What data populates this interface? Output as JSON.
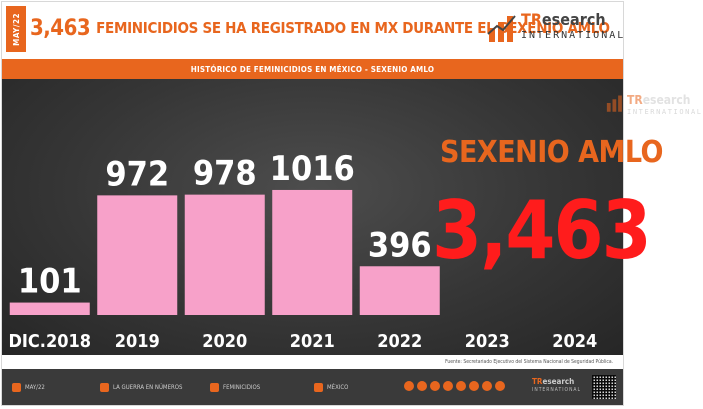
{
  "header": {
    "date_tag": "MAY/22",
    "headline_number": "3,463",
    "headline_text": "FEMINICIDIOS SE HA REGISTRADO EN MX DURANTE EL SEXENIO AMLO",
    "logo_brand_a": "TR",
    "logo_brand_b": "esearch",
    "logo_sub": "INTERNATIONAL"
  },
  "subtitle_bar": "HISTÓRICO DE FEMINICIDIOS EN MÉXICO -  SEXENIO AMLO",
  "chart_data": {
    "type": "bar",
    "categories": [
      "DIC.2018",
      "2019",
      "2020",
      "2021",
      "2022",
      "2023",
      "2024"
    ],
    "values": [
      101,
      972,
      978,
      1016,
      396,
      null,
      null
    ],
    "data_labels": [
      "101",
      "972",
      "978",
      "1016",
      "396",
      "",
      ""
    ],
    "title": "HISTÓRICO DE FEMINICIDIOS EN MÉXICO -  SEXENIO AMLO",
    "xlabel": "",
    "ylabel": "",
    "ylim": [
      0,
      1300
    ],
    "grid": false,
    "legend": "none",
    "bar_color": "#f7a1c9",
    "annotation_label": "SEXENIO AMLO",
    "annotation_value": "3,463"
  },
  "colors": {
    "accent": "#e8661e",
    "total": "#ff1c1c",
    "bar": "#f7a1c9",
    "background": "#363636"
  },
  "source_text": "Fuente: Secretariado Ejecutivo del Sistema Nacional de Seguridad Pública.",
  "footer": {
    "date": "MAY/22",
    "section_1": "LA GUERRA EN NÚMEROS",
    "section_2": "FEMINICIDIOS",
    "section_3": "MÉXICO",
    "icons": [
      "calendar-icon",
      "target-icon",
      "female-icon",
      "map-pin-icon"
    ]
  }
}
